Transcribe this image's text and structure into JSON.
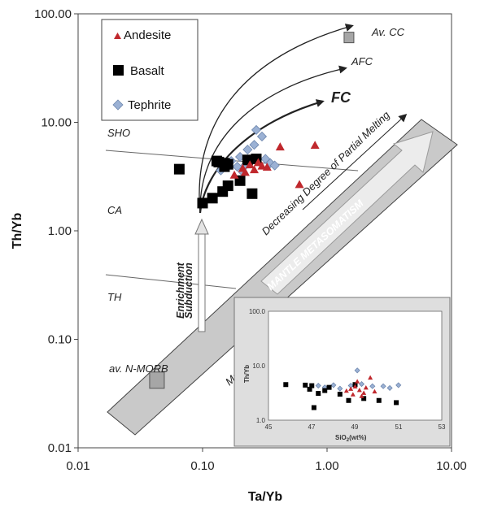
{
  "chart_data": [
    {
      "type": "scatter",
      "xlabel": "Ta/Yb",
      "ylabel": "Th/Yb",
      "xscale": "log",
      "yscale": "log",
      "xlim": [
        0.01,
        10
      ],
      "ylim": [
        0.01,
        100
      ],
      "x_ticks": [
        "0.01",
        "0.10",
        "1.00",
        "10.00"
      ],
      "y_ticks": [
        "0.01",
        "0.10",
        "1.00",
        "10.00",
        "100.00"
      ],
      "legend": {
        "placement": "top-left",
        "entries": [
          "Andesite",
          "Basalt",
          "Tephrite"
        ]
      },
      "colors": {
        "Andesite": "#c0282d",
        "Basalt": "#000000",
        "Tephrite": "#9bb1d4",
        "mantle_array": "#c9c9c9",
        "reference_box": "#a6a6a6"
      },
      "series": [
        {
          "name": "Andesite",
          "marker": "triangle",
          "points": [
            [
              0.18,
              3.3
            ],
            [
              0.21,
              3.8
            ],
            [
              0.22,
              3.5
            ],
            [
              0.24,
              4.1
            ],
            [
              0.26,
              3.7
            ],
            [
              0.28,
              4.3
            ],
            [
              0.3,
              4.0
            ],
            [
              0.33,
              3.9
            ],
            [
              0.42,
              6.0
            ],
            [
              0.8,
              6.2
            ],
            [
              0.6,
              2.7
            ]
          ]
        },
        {
          "name": "Basalt",
          "marker": "square",
          "points": [
            [
              0.065,
              3.7
            ],
            [
              0.1,
              1.8
            ],
            [
              0.12,
              2.0
            ],
            [
              0.135,
              4.3
            ],
            [
              0.145,
              2.3
            ],
            [
              0.15,
              3.9
            ],
            [
              0.16,
              4.1
            ],
            [
              0.16,
              2.6
            ],
            [
              0.2,
              2.9
            ],
            [
              0.23,
              4.5
            ],
            [
              0.25,
              2.2
            ],
            [
              0.27,
              4.6
            ],
            [
              0.13,
              4.4
            ],
            [
              0.15,
              4.2
            ]
          ]
        },
        {
          "name": "Tephrite",
          "marker": "diamond",
          "points": [
            [
              0.14,
              3.6
            ],
            [
              0.17,
              4.4
            ],
            [
              0.19,
              3.9
            ],
            [
              0.2,
              4.8
            ],
            [
              0.21,
              3.5
            ],
            [
              0.23,
              5.6
            ],
            [
              0.24,
              4.3
            ],
            [
              0.26,
              6.2
            ],
            [
              0.3,
              7.4
            ],
            [
              0.32,
              4.6
            ],
            [
              0.35,
              4.2
            ],
            [
              0.38,
              4.0
            ],
            [
              0.27,
              8.5
            ],
            [
              0.22,
              4.0
            ]
          ]
        }
      ],
      "reference_points": [
        {
          "label": "Av. CC",
          "x": 1.5,
          "y": 60
        },
        {
          "label": "av. N-MORB",
          "x": 0.043,
          "y": 0.042
        }
      ],
      "annotations": {
        "afc": "AFC",
        "fc": "FC",
        "sho": "SHO",
        "ca": "CA",
        "th": "TH",
        "partial_melting": "Decreasing Degree of Partial Melting",
        "mantle_metasomatism": "MANTLE METASOMATISM",
        "subduction_1": "Subduction",
        "subduction_2": "Enrichment",
        "mantle_array_fragment": "Ma"
      }
    },
    {
      "type": "scatter",
      "xlabel": "SiO",
      "xlabel_sub": "2",
      "xlabel_suffix": "(wt%)",
      "ylabel": "Th/Yb",
      "xlim": [
        45,
        53
      ],
      "ylim": [
        1,
        100
      ],
      "yscale": "log",
      "x_ticks": [
        "45",
        "47",
        "49",
        "51",
        "53"
      ],
      "y_ticks": [
        "1.0",
        "10.0",
        "100.0"
      ],
      "series": [
        {
          "name": "Andesite",
          "points": [
            [
              48.6,
              3.5
            ],
            [
              48.8,
              3.8
            ],
            [
              49.0,
              4.2
            ],
            [
              49.1,
              5.2
            ],
            [
              49.2,
              3.6
            ],
            [
              49.5,
              4.0
            ],
            [
              49.7,
              6.1
            ],
            [
              49.9,
              3.4
            ],
            [
              49.4,
              3.2
            ],
            [
              48.9,
              3.0
            ],
            [
              49.3,
              2.8
            ]
          ]
        },
        {
          "name": "Basalt",
          "points": [
            [
              45.8,
              4.5
            ],
            [
              46.7,
              4.4
            ],
            [
              46.9,
              3.7
            ],
            [
              47.0,
              4.3
            ],
            [
              47.1,
              1.7
            ],
            [
              47.3,
              3.1
            ],
            [
              47.8,
              4.0
            ],
            [
              48.3,
              3.0
            ],
            [
              48.7,
              2.3
            ],
            [
              49.4,
              2.5
            ],
            [
              50.1,
              2.3
            ],
            [
              50.9,
              2.1
            ],
            [
              49.0,
              4.5
            ],
            [
              47.6,
              3.5
            ]
          ]
        },
        {
          "name": "Tephrite",
          "points": [
            [
              47.3,
              4.3
            ],
            [
              47.6,
              4.0
            ],
            [
              48.0,
              4.4
            ],
            [
              48.3,
              3.8
            ],
            [
              48.8,
              4.3
            ],
            [
              49.1,
              8.2
            ],
            [
              49.3,
              4.6
            ],
            [
              49.8,
              4.2
            ],
            [
              50.3,
              4.2
            ],
            [
              51.0,
              4.4
            ],
            [
              50.6,
              3.9
            ]
          ]
        }
      ]
    }
  ]
}
